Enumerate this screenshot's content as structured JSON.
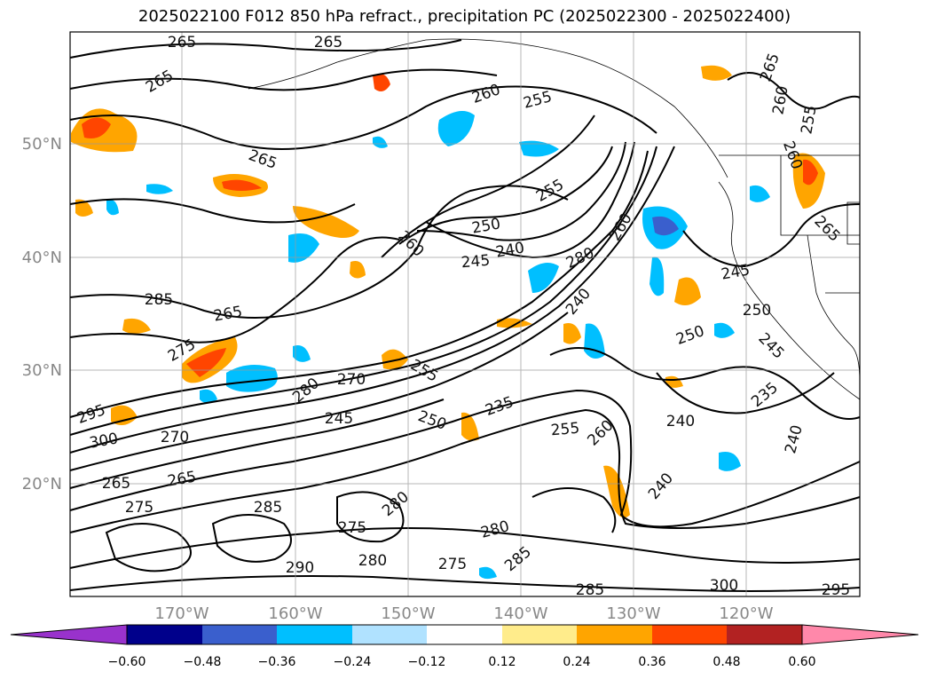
{
  "title": "2025022100 F012 850 hPa refract., precipitation PC (2025022300 - 2025022400)",
  "lat_labels": [
    "50°N",
    "40°N",
    "30°N",
    "20°N"
  ],
  "lon_labels": [
    "170°W",
    "160°W",
    "150°W",
    "140°W",
    "130°W",
    "120°W"
  ],
  "colorbar": {
    "ticks": [
      "−0.60",
      "−0.48",
      "−0.36",
      "−0.24",
      "−0.12",
      "0.12",
      "0.24",
      "0.36",
      "0.48",
      "0.60"
    ],
    "colors": [
      "#9932cc",
      "#00008b",
      "#3a5fcd",
      "#00bfff",
      "#b0e2ff",
      "#ffffff",
      "#ffec8b",
      "#ffa500",
      "#ff4500",
      "#b22222",
      "#ff88aa"
    ]
  },
  "contour_labels": [
    {
      "text": "265"
    },
    {
      "text": "265"
    },
    {
      "text": "265"
    },
    {
      "text": "260"
    },
    {
      "text": "255"
    },
    {
      "text": "265"
    },
    {
      "text": "260"
    },
    {
      "text": "255"
    },
    {
      "text": "265"
    },
    {
      "text": "255"
    },
    {
      "text": "250"
    },
    {
      "text": "240"
    },
    {
      "text": "245"
    },
    {
      "text": "260"
    },
    {
      "text": "280"
    },
    {
      "text": "260"
    },
    {
      "text": "265"
    },
    {
      "text": "285"
    },
    {
      "text": "275"
    },
    {
      "text": "250"
    },
    {
      "text": "240"
    },
    {
      "text": "245"
    },
    {
      "text": "255"
    },
    {
      "text": "270"
    },
    {
      "text": "280"
    },
    {
      "text": "295"
    },
    {
      "text": "300"
    },
    {
      "text": "270"
    },
    {
      "text": "245"
    },
    {
      "text": "250"
    },
    {
      "text": "235"
    },
    {
      "text": "255"
    },
    {
      "text": "260"
    },
    {
      "text": "240"
    },
    {
      "text": "235"
    },
    {
      "text": "245"
    },
    {
      "text": "240"
    },
    {
      "text": "265"
    },
    {
      "text": "265"
    },
    {
      "text": "275"
    },
    {
      "text": "285"
    },
    {
      "text": "280"
    },
    {
      "text": "275"
    },
    {
      "text": "280"
    },
    {
      "text": "275"
    },
    {
      "text": "280"
    },
    {
      "text": "285"
    },
    {
      "text": "290"
    },
    {
      "text": "300"
    },
    {
      "text": "285"
    },
    {
      "text": "295"
    },
    {
      "text": "240"
    },
    {
      "text": "250"
    },
    {
      "text": "260"
    },
    {
      "text": "265"
    }
  ]
}
